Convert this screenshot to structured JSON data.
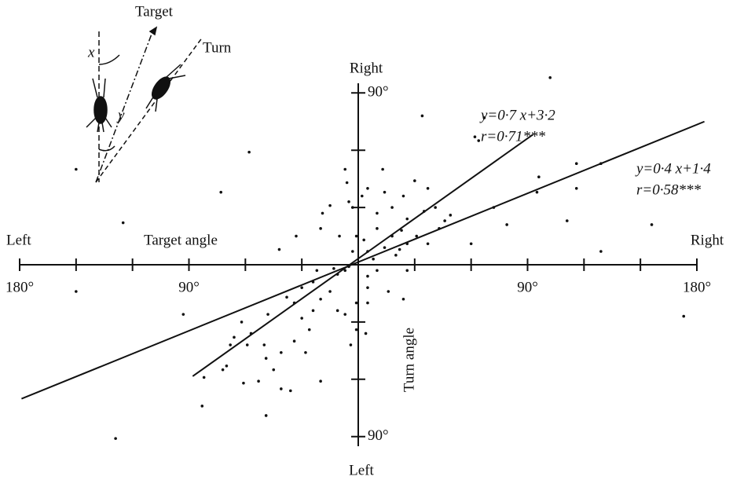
{
  "chart_data": {
    "type": "scatter",
    "x_label": "Target angle",
    "y_label": "Turn angle",
    "x_left_label": "Left",
    "x_right_label": "Right",
    "y_top_label": "Right",
    "y_bottom_label": "Left",
    "xlim": [
      -180,
      180
    ],
    "ylim": [
      -100,
      100
    ],
    "xticks": [
      {
        "value": -180,
        "label": "180°"
      },
      {
        "value": -90,
        "label": "90°"
      },
      {
        "value": 90,
        "label": "90°"
      },
      {
        "value": 180,
        "label": "180°"
      }
    ],
    "x_minor_ticks": [
      -150,
      -120,
      -60,
      -30,
      30,
      60,
      120,
      150
    ],
    "yticks": [
      {
        "value": 90,
        "label": "90°"
      },
      {
        "value": -90,
        "label": "90°"
      }
    ],
    "y_minor_ticks": [
      60,
      30,
      -30,
      -60
    ],
    "color": "#111111",
    "x": [
      -150,
      -150,
      -129,
      -125,
      -93,
      -73,
      -58,
      -83,
      102,
      34,
      62,
      64,
      67,
      116,
      129,
      116,
      111,
      156,
      129,
      173,
      79,
      95,
      96,
      72,
      60,
      43,
      -33,
      -42,
      -49,
      -36,
      -20,
      -20,
      -19,
      -15,
      -7,
      -6,
      -5,
      -3,
      2,
      5,
      10,
      13,
      14,
      18,
      24,
      26,
      30,
      37,
      35,
      41,
      46,
      49,
      23,
      18,
      14,
      5,
      8,
      10,
      20,
      26,
      24,
      16,
      5,
      4,
      -1,
      -4,
      -11,
      -15,
      -20,
      -24,
      -26,
      -30,
      -34,
      -41,
      -45,
      -49,
      -53,
      -57,
      -59,
      -66,
      -68,
      -70,
      -72,
      -61,
      -82,
      -62,
      -48,
      -38,
      -34,
      -11,
      -7,
      -5,
      -13,
      -24,
      -22,
      -10,
      -1,
      -3,
      3,
      10,
      31,
      37,
      26,
      22,
      5,
      5,
      -30,
      -28,
      -41,
      -50,
      -1,
      -7
    ],
    "values": [
      50,
      -14,
      -91,
      22,
      -26,
      38,
      59,
      -74,
      98,
      78,
      67,
      65,
      77,
      53,
      53,
      40,
      23,
      21,
      7,
      -27,
      21,
      38,
      46,
      30,
      11,
      19,
      15,
      8,
      -79,
      -66,
      -61,
      19,
      27,
      31,
      50,
      43,
      33,
      30,
      36,
      40,
      27,
      50,
      38,
      30,
      36,
      24,
      44,
      40,
      28,
      30,
      23,
      26,
      18,
      15,
      9,
      7,
      3,
      -3,
      5,
      -3,
      -18,
      -14,
      -20,
      -36,
      -34,
      -42,
      -24,
      -14,
      -18,
      -24,
      -34,
      -28,
      -40,
      -46,
      -55,
      -49,
      -61,
      -36,
      -42,
      -38,
      -42,
      -53,
      -55,
      -62,
      -59,
      -30,
      -26,
      -17,
      -20,
      -5,
      -3,
      -1,
      -2,
      -9,
      -3,
      15,
      15,
      7,
      13,
      19,
      15,
      11,
      11,
      8,
      -6,
      -12,
      -12,
      -46,
      -65,
      -42,
      -20,
      -26
    ],
    "fits": [
      {
        "slope": 0.7,
        "intercept": 3.2,
        "xrange": [
          -88,
          93
        ],
        "equation": "y=0·7 x+3·2",
        "r": "r=0·71***"
      },
      {
        "slope": 0.4,
        "intercept": 1.4,
        "xrange": [
          -179,
          184
        ],
        "equation": "y=0·4 x+1·4",
        "r": "r=0·58***"
      }
    ],
    "inset": {
      "target": "Target",
      "turn": "Turn",
      "x": "x",
      "y": "y"
    }
  }
}
